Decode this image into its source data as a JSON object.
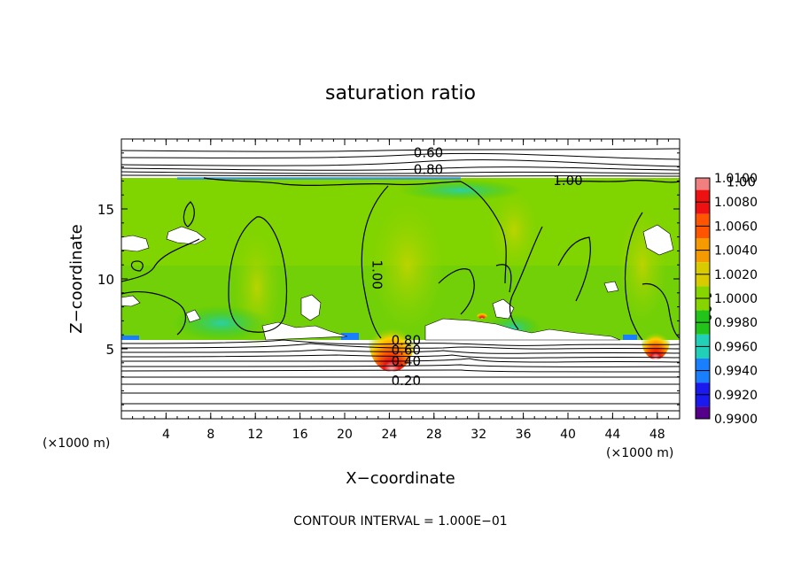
{
  "chart_data": {
    "type": "heatmap",
    "title": "saturation ratio",
    "xlabel": "X−coordinate",
    "ylabel": "Z−coordinate",
    "x_unit_left": "(×1000 m)",
    "x_unit_right": "(×1000 m)",
    "footer": "CONTOUR INTERVAL = 1.000E−01",
    "xlim": [
      0,
      50
    ],
    "ylim": [
      0,
      20
    ],
    "x_ticks": [
      4,
      8,
      12,
      16,
      20,
      24,
      28,
      32,
      36,
      40,
      44,
      48
    ],
    "y_ticks": [
      5,
      10,
      15
    ],
    "grid": false,
    "colorbar": {
      "levels": [
        "1.0100",
        "1.0080",
        "1.0060",
        "1.0040",
        "1.0020",
        "1.0000",
        "0.9980",
        "0.9960",
        "0.9940",
        "0.9920",
        "0.9900"
      ],
      "colors": [
        "#f08080",
        "#ee1111",
        "#ff5500",
        "#f59a00",
        "#d8cc00",
        "#88d400",
        "#22c41a",
        "#22d0b8",
        "#1a7fff",
        "#1a1aee",
        "#55008a"
      ]
    },
    "contour_labels": [
      {
        "text": "0.60",
        "x": 27.5,
        "y": 18.7
      },
      {
        "text": "0.80",
        "x": 27.5,
        "y": 17.5
      },
      {
        "text": "1.00",
        "x": 40.0,
        "y": 16.7
      },
      {
        "text": "1.00",
        "x": 55.5,
        "y": 16.6
      },
      {
        "text": "1.00",
        "x": 22.5,
        "y": 10.3
      },
      {
        "text": "1.00",
        "x": 52.0,
        "y": 8.0
      },
      {
        "text": "0.80",
        "x": 25.5,
        "y": 5.3
      },
      {
        "text": "0.60",
        "x": 25.5,
        "y": 4.6
      },
      {
        "text": "0.40",
        "x": 25.5,
        "y": 3.8
      },
      {
        "text": "0.20",
        "x": 25.5,
        "y": 2.4
      }
    ]
  }
}
